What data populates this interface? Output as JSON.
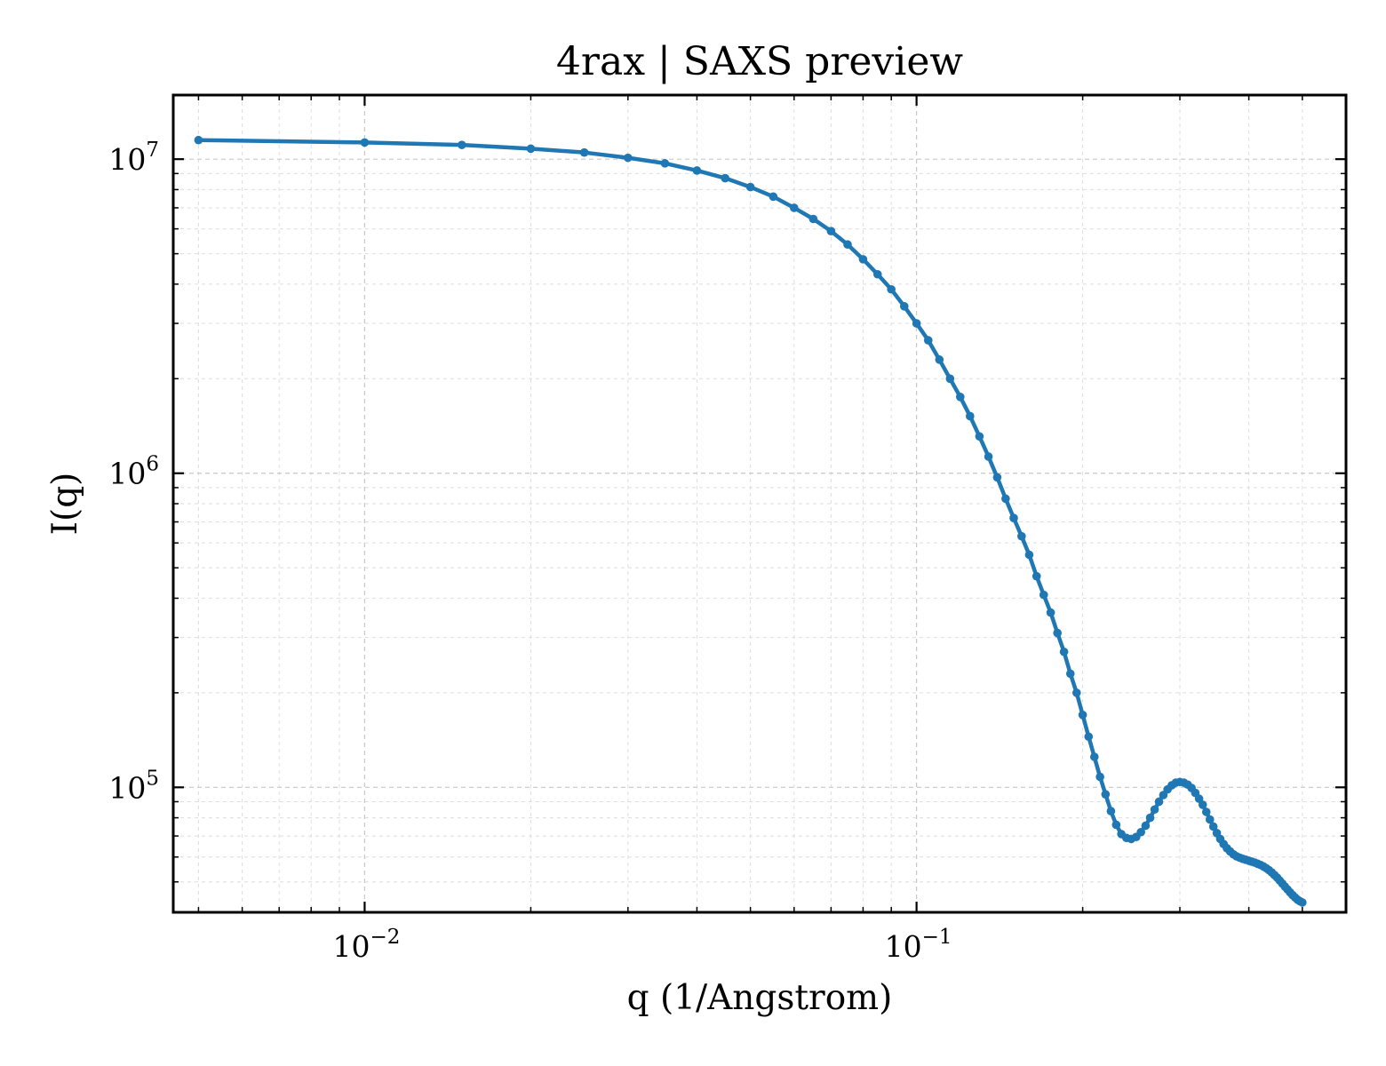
{
  "chart_data": {
    "type": "line",
    "title": "4rax | SAXS preview",
    "xlabel": "q (1/Angstrom)",
    "ylabel": "I(q)",
    "xscale": "log",
    "yscale": "log",
    "xlim": [
      0.0045,
      0.6
    ],
    "ylim": [
      40000,
      16000000
    ],
    "grid": true,
    "legend": "none",
    "x_ticks": [
      {
        "base": "10",
        "exp": "−2",
        "value": 0.01
      },
      {
        "base": "10",
        "exp": "−1",
        "value": 0.1
      }
    ],
    "y_ticks": [
      {
        "base": "10",
        "exp": "5",
        "value": 100000
      },
      {
        "base": "10",
        "exp": "6",
        "value": 1000000
      },
      {
        "base": "10",
        "exp": "7",
        "value": 10000000
      }
    ],
    "series": [
      {
        "color": "#1f77b4",
        "x": [
          0.005,
          0.01,
          0.015,
          0.02,
          0.025,
          0.03,
          0.035,
          0.04,
          0.045,
          0.05,
          0.055,
          0.06,
          0.065,
          0.07,
          0.075,
          0.08,
          0.085,
          0.09,
          0.095,
          0.1,
          0.105,
          0.11,
          0.115,
          0.12,
          0.125,
          0.13,
          0.135,
          0.14,
          0.145,
          0.15,
          0.155,
          0.16,
          0.165,
          0.17,
          0.175,
          0.18,
          0.185,
          0.19,
          0.195,
          0.2,
          0.205,
          0.21,
          0.215,
          0.22,
          0.225,
          0.23,
          0.235,
          0.24,
          0.245,
          0.25,
          0.255,
          0.26,
          0.265,
          0.27,
          0.275,
          0.28,
          0.285,
          0.29,
          0.295,
          0.3,
          0.305,
          0.31,
          0.315,
          0.32,
          0.325,
          0.33,
          0.335,
          0.34,
          0.345,
          0.35,
          0.355,
          0.36,
          0.365,
          0.37,
          0.375,
          0.38,
          0.385,
          0.39,
          0.395,
          0.4,
          0.405,
          0.41,
          0.415,
          0.42,
          0.425,
          0.43,
          0.435,
          0.44,
          0.445,
          0.45,
          0.455,
          0.46,
          0.465,
          0.47,
          0.475,
          0.48,
          0.485,
          0.49,
          0.495,
          0.5
        ],
        "y": [
          11500000,
          11300000,
          11100000,
          10800000,
          10500000,
          10100000,
          9700000,
          9200000,
          8700000,
          8150000,
          7600000,
          7000000,
          6450000,
          5900000,
          5350000,
          4800000,
          4300000,
          3850000,
          3400000,
          3000000,
          2650000,
          2300000,
          2000000,
          1750000,
          1520000,
          1310000,
          1130000,
          970000,
          830000,
          720000,
          630000,
          550000,
          470000,
          410000,
          360000,
          310000,
          270000,
          230000,
          200000,
          170000,
          145000,
          125000,
          108000,
          95000,
          84000,
          76000,
          71000,
          69000,
          68500,
          69500,
          72000,
          75500,
          80000,
          85000,
          90000,
          94500,
          98500,
          101500,
          103500,
          104000,
          103500,
          102000,
          99500,
          96000,
          92000,
          88000,
          83500,
          79000,
          75000,
          71500,
          68500,
          66000,
          64000,
          62500,
          61200,
          60300,
          59700,
          59200,
          58800,
          58400,
          58000,
          57600,
          57100,
          56600,
          56000,
          55300,
          54500,
          53600,
          52600,
          51600,
          50500,
          49400,
          48300,
          47300,
          46300,
          45400,
          44600,
          43900,
          43400,
          43000
        ]
      }
    ]
  }
}
